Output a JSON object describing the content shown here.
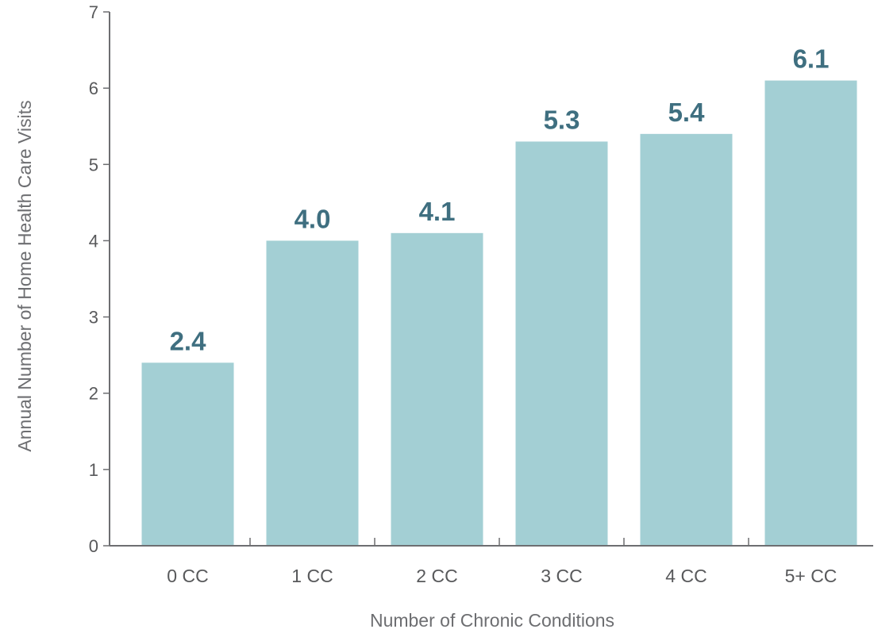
{
  "chart_data": {
    "type": "bar",
    "title": "",
    "xlabel": "Number of Chronic Conditions",
    "ylabel": "Annual Number of Home Health Care Visits",
    "categories": [
      "0 CC",
      "1 CC",
      "2 CC",
      "3 CC",
      "4 CC",
      "5+ CC"
    ],
    "values": [
      2.4,
      4.0,
      4.1,
      5.3,
      5.4,
      6.1
    ],
    "value_labels": [
      "2.4",
      "4.0",
      "4.1",
      "5.3",
      "5.4",
      "6.1"
    ],
    "ylim": [
      0,
      7
    ],
    "yticks": [
      "0",
      "1",
      "2",
      "3",
      "4",
      "5",
      "6",
      "7"
    ],
    "grid": false,
    "legend": "none",
    "colors": {
      "bar": "#a3cfd4",
      "data_label": "#3f6f80",
      "axis": "#6d6e71",
      "tick_text": "#58595b"
    }
  }
}
